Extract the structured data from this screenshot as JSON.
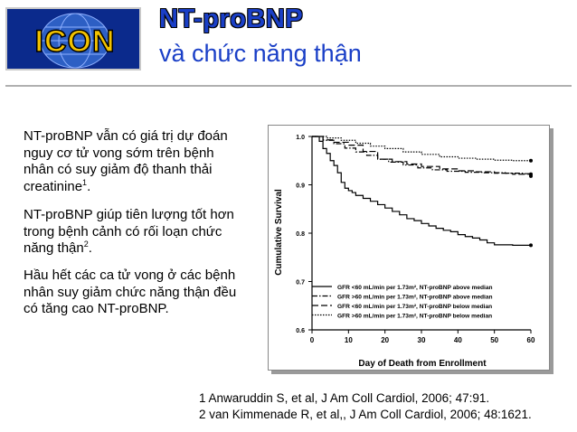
{
  "logo": {
    "text": "ICON"
  },
  "header": {
    "title": "NT-proBNP",
    "subtitle": "và chức năng thận"
  },
  "body": {
    "p1_text": "NT-proBNP vẫn có giá trị dự đoán nguy cơ tử vong sớm trên bệnh nhân có suy giảm độ thanh thải creatinine",
    "p1_sup": "1",
    "p1_end": ".",
    "p2_text": "NT-proBNP giúp tiên lượng tốt hơn trong bệnh cảnh có rối loạn chức năng thận",
    "p2_sup": "2",
    "p2_end": ".",
    "p3_text": "Hầu hết các ca tử vong ở các bệnh nhân suy giảm chức năng thận đều có tăng cao NT-proBNP."
  },
  "references": [
    "1 Anwaruddin S, et al, J Am Coll Cardiol, 2006; 47:91.",
    "2 van Kimmenade R, et al,, J Am Coll Cardiol, 2006; 48:1621."
  ],
  "chart_data": {
    "type": "line",
    "xlabel": "Day of Death from Enrollment",
    "ylabel": "Cumulative Survival",
    "xlim": [
      0,
      60
    ],
    "ylim": [
      0.6,
      1.0
    ],
    "x_ticks": [
      0,
      10,
      20,
      30,
      40,
      50,
      60
    ],
    "y_ticks": [
      "1.0",
      "0.9",
      "0.8",
      "0.7",
      "0.6"
    ],
    "y_tick_values": [
      1.0,
      0.9,
      0.8,
      0.7,
      0.6
    ],
    "legend_position": "bottom-right",
    "series": [
      {
        "name": "GFR <60 mL/min per 1.73m², NT-proBNP above median",
        "style": "solid",
        "points": [
          [
            0,
            1.0
          ],
          [
            2,
            0.99
          ],
          [
            3,
            0.975
          ],
          [
            4,
            0.965
          ],
          [
            5,
            0.95
          ],
          [
            6,
            0.94
          ],
          [
            7,
            0.925
          ],
          [
            8,
            0.905
          ],
          [
            9,
            0.893
          ],
          [
            10,
            0.888
          ],
          [
            11,
            0.884
          ],
          [
            12,
            0.878
          ],
          [
            14,
            0.872
          ],
          [
            16,
            0.866
          ],
          [
            18,
            0.859
          ],
          [
            20,
            0.852
          ],
          [
            22,
            0.845
          ],
          [
            24,
            0.838
          ],
          [
            26,
            0.83
          ],
          [
            28,
            0.826
          ],
          [
            30,
            0.82
          ],
          [
            32,
            0.815
          ],
          [
            34,
            0.81
          ],
          [
            36,
            0.806
          ],
          [
            38,
            0.803
          ],
          [
            40,
            0.797
          ],
          [
            42,
            0.793
          ],
          [
            44,
            0.79
          ],
          [
            46,
            0.786
          ],
          [
            48,
            0.78
          ],
          [
            50,
            0.776
          ],
          [
            55,
            0.775
          ],
          [
            60,
            0.775
          ]
        ]
      },
      {
        "name": "GFR >60 mL/min per 1.73m², NT-proBNP above median",
        "style": "dash-dot",
        "points": [
          [
            0,
            1.0
          ],
          [
            3,
            0.992
          ],
          [
            6,
            0.985
          ],
          [
            9,
            0.976
          ],
          [
            12,
            0.968
          ],
          [
            15,
            0.961
          ],
          [
            18,
            0.953
          ],
          [
            21,
            0.947
          ],
          [
            25,
            0.941
          ],
          [
            29,
            0.935
          ],
          [
            33,
            0.931
          ],
          [
            37,
            0.928
          ],
          [
            42,
            0.926
          ],
          [
            47,
            0.925
          ],
          [
            53,
            0.924
          ],
          [
            58,
            0.923
          ],
          [
            60,
            0.922
          ]
        ]
      },
      {
        "name": "GFR <60 mL/min per 1.73m², NT-proBNP below median",
        "style": "dashed",
        "points": [
          [
            0,
            1.0
          ],
          [
            3,
            0.993
          ],
          [
            6,
            0.988
          ],
          [
            10,
            0.982
          ],
          [
            14,
            0.969
          ],
          [
            18,
            0.953
          ],
          [
            22,
            0.948
          ],
          [
            26,
            0.943
          ],
          [
            30,
            0.938
          ],
          [
            35,
            0.933
          ],
          [
            40,
            0.929
          ],
          [
            45,
            0.927
          ],
          [
            50,
            0.924
          ],
          [
            55,
            0.922
          ],
          [
            60,
            0.918
          ]
        ]
      },
      {
        "name": "GFR >60 mL/min per 1.73m², NT-proBNP below median",
        "style": "dotted",
        "points": [
          [
            0,
            1.0
          ],
          [
            4,
            0.997
          ],
          [
            8,
            0.992
          ],
          [
            12,
            0.986
          ],
          [
            16,
            0.98
          ],
          [
            20,
            0.975
          ],
          [
            25,
            0.968
          ],
          [
            30,
            0.963
          ],
          [
            35,
            0.958
          ],
          [
            40,
            0.955
          ],
          [
            45,
            0.953
          ],
          [
            50,
            0.951
          ],
          [
            55,
            0.95
          ],
          [
            60,
            0.95
          ]
        ]
      }
    ]
  }
}
